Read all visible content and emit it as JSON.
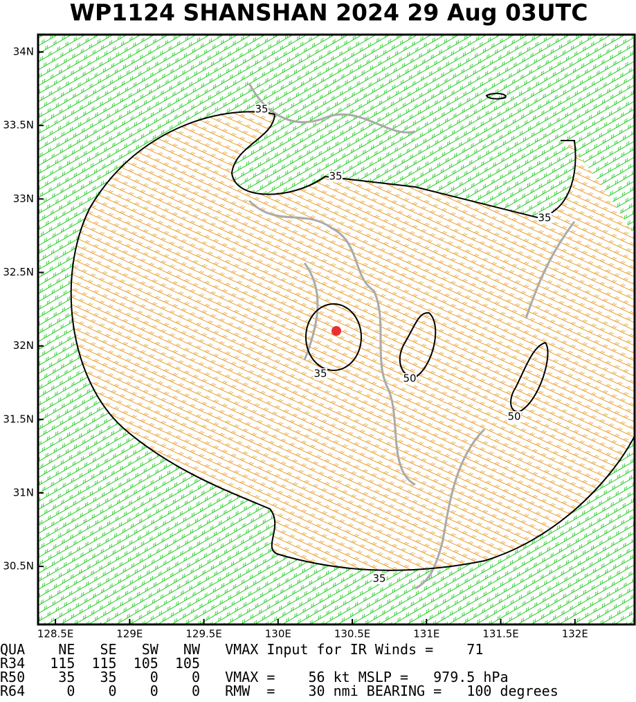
{
  "title": "WP1124   SHANSHAN 2024 29 Aug 03UTC",
  "map": {
    "xlim": [
      128.383,
      132.402
    ],
    "ylim": [
      30.105,
      34.118
    ],
    "xticks": [
      {
        "value": 128.5,
        "label": "128.5E"
      },
      {
        "value": 129,
        "label": "129E"
      },
      {
        "value": 129.5,
        "label": "129.5E"
      },
      {
        "value": 130,
        "label": "130E"
      },
      {
        "value": 130.5,
        "label": "130.5E"
      },
      {
        "value": 131,
        "label": "131E"
      },
      {
        "value": 131.5,
        "label": "131.5E"
      },
      {
        "value": 132,
        "label": "132E"
      }
    ],
    "yticks": [
      {
        "value": 30.5,
        "label": "30.5N"
      },
      {
        "value": 31,
        "label": "31N"
      },
      {
        "value": 31.5,
        "label": "31.5N"
      },
      {
        "value": 32,
        "label": "32N"
      },
      {
        "value": 32.5,
        "label": "32.5N"
      },
      {
        "value": 33,
        "label": "33N"
      },
      {
        "value": 33.5,
        "label": "33.5N"
      },
      {
        "value": 34,
        "label": "34N"
      }
    ],
    "contour_labels": [
      "35",
      "35",
      "35",
      "35",
      "35",
      "50",
      "50"
    ]
  },
  "info_lines": [
    "QUA    NE   SE   SW   NW   VMAX Input for IR Winds =    71",
    "R34   115  115  105  105",
    "R50    35   35    0    0   VMAX =    56 kt MSLP =   979.5 hPa",
    "R64     0    0    0    0   RMW  =    30 nmi BEARING =   100 degrees"
  ]
}
